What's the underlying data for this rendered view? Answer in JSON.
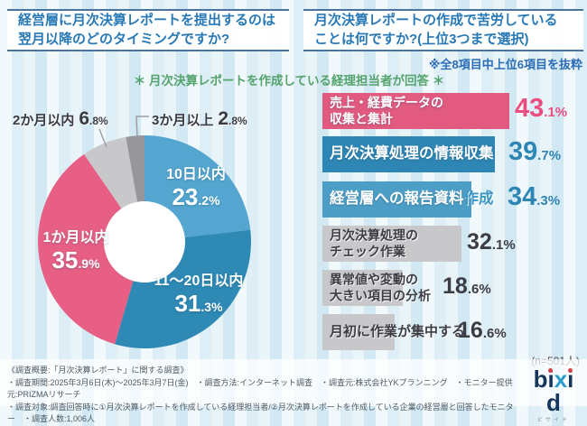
{
  "headers": {
    "left": "経営層に月次決算レポートを提出するのは\n翌月以降のどのタイミングですか?",
    "right": "月次決算レポートの作成で苦労している\nことは何ですか?(上位3つまで選択)"
  },
  "page": {
    "excerpt_note": "※全8項目中上位6項目を抜粋",
    "annotation": "＊ 月次決算レポートを作成している経理担当者が回答 ＊",
    "footer": "《調査概要:「月次決算レポート」に関する調査》\n・調査期間:2025年3月6日(木)〜2025年3月7日(金)　・調査方法:インターネット調査　・調査元:株式会社YKプランニング　・モニター提供元:PRIZMAリサーチ\n・調査対象:調査回答時に①月次決算レポートを作成している経理担当者/②月次決算レポートを作成している企業の経営層と回答したモニター　・調査人数:1,006人"
  },
  "logo": {
    "letters": [
      "b",
      "i",
      "x",
      "i",
      "d"
    ],
    "subtext": "ビサイド"
  },
  "colors": {
    "title_blue": "#2879b6",
    "annotation_green": "#55a36d",
    "pink": "#e75f84",
    "blue_dark": "#2e89b5",
    "blue_light": "#54a5cf",
    "gray_light": "#c8c8cb",
    "gray_dark": "#96969b"
  },
  "chart_data": [
    {
      "type": "pie",
      "donut": true,
      "title": "経営層に月次決算レポートを提出するのは翌月以降のどのタイミングですか?",
      "units": "%",
      "start_angle": "12-oclock, clockwise",
      "slices": [
        {
          "label": "10日以内",
          "value": 23.2,
          "color": "#54a5cf"
        },
        {
          "label": "11～20日以内",
          "value": 31.3,
          "color": "#2e89b5"
        },
        {
          "label": "1か月以内",
          "value": 35.9,
          "color": "#e75f84"
        },
        {
          "label": "2か月以内",
          "value": 6.8,
          "color": "#c8c8cb"
        },
        {
          "label": "3か月以上",
          "value": 2.8,
          "color": "#96969b"
        }
      ]
    },
    {
      "type": "bar",
      "title": "月次決算レポートの作成で苦労していることは何ですか?(上位3つまで選択)",
      "units": "%",
      "n_label": "(n=501人)",
      "items": [
        {
          "label": "売上・経費データの\n収集と集計",
          "label_tail": "",
          "value": 43.1,
          "color": "#e25a7f",
          "value_color": "#e94e7e"
        },
        {
          "label": "月次決算処理の情報収集",
          "label_tail": "",
          "value": 39.7,
          "color": "#2e86b4",
          "value_color": "#2e86b4"
        },
        {
          "label": "経営層への報告資料",
          "label_tail": "作成",
          "value": 34.3,
          "color": "#4d9ec6",
          "value_color": "#2e86b4"
        },
        {
          "label": "月次決算処理の\nチェック作業",
          "label_tail": "",
          "value": 32.1,
          "color": "#c8c8cb",
          "value_color": "#3c3c44"
        },
        {
          "label": "異常値や変動の\n大きい項目の分析",
          "label_tail": "",
          "value": 18.6,
          "color": "#c8c8cb",
          "value_color": "#3c3c44"
        },
        {
          "label": "月初に作業が集中する",
          "label_tail": "",
          "value": 16.6,
          "color": "#c8c8cb",
          "value_color": "#3c3c44"
        }
      ]
    }
  ]
}
